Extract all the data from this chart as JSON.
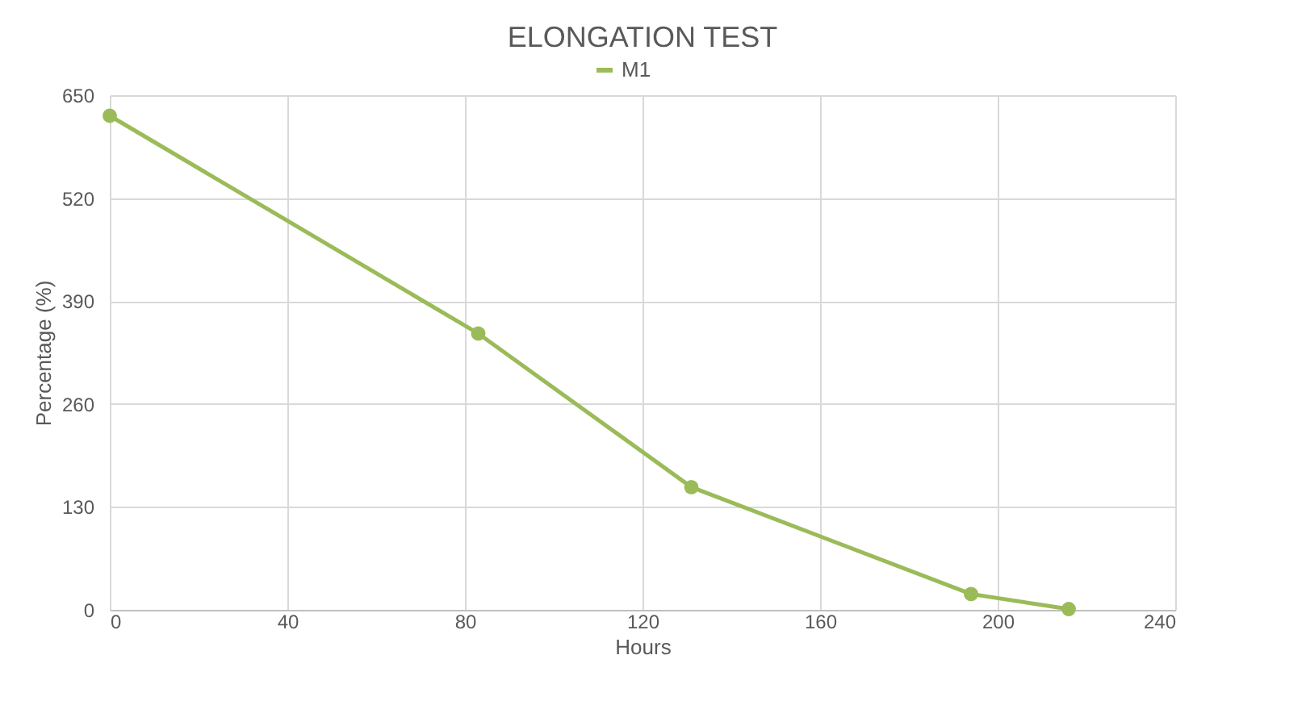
{
  "chart_data": {
    "type": "line",
    "title": "ELONGATION TEST",
    "xlabel": "Hours",
    "ylabel": "Percentage (%)",
    "x": [
      0,
      83,
      131,
      194,
      216
    ],
    "series": [
      {
        "name": "M1",
        "color": "#9bbb59",
        "values": [
          624,
          349,
          155,
          20,
          1
        ]
      }
    ],
    "xlim": [
      0,
      240
    ],
    "xticks": [
      0,
      40,
      80,
      120,
      160,
      200,
      240
    ],
    "ylim": [
      0,
      650
    ],
    "yticks": [
      0,
      130,
      260,
      390,
      520,
      650
    ],
    "grid": true,
    "legend": "top",
    "marker": "circle",
    "line_style": "solid"
  }
}
